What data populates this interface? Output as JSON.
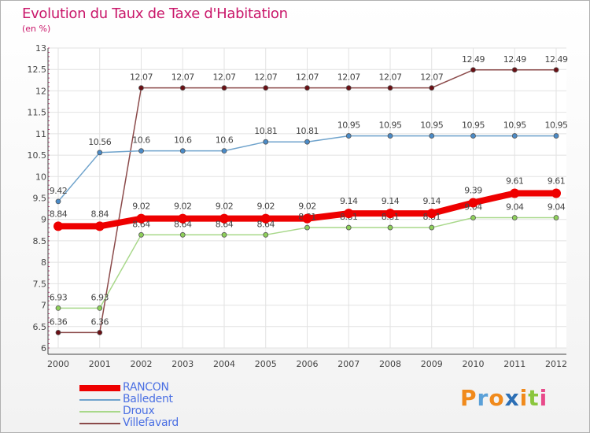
{
  "title": "Evolution du Taux de Taxe d'Habitation",
  "subtitle": "(en %)",
  "brand": {
    "text": "Proxiti",
    "letters": [
      "P",
      "r",
      "o",
      "x",
      "i",
      "t",
      "i"
    ],
    "colors": [
      "#f08a1c",
      "#5aa0d8",
      "#f08a1c",
      "#2c6fb5",
      "#f08a1c",
      "#8bc63e",
      "#e84a8a"
    ]
  },
  "chart_data": {
    "type": "line",
    "title": "Evolution du Taux de Taxe d'Habitation",
    "ylabel": "(en %)",
    "xlabel": "",
    "categories": [
      "2000",
      "2001",
      "2002",
      "2003",
      "2004",
      "2005",
      "2006",
      "2007",
      "2008",
      "2009",
      "2010",
      "2011",
      "2012"
    ],
    "ylim": [
      6,
      13
    ],
    "yticks": [
      "6",
      "6.5",
      "7",
      "7.5",
      "8",
      "8.5",
      "9",
      "9.5",
      "10",
      "10.5",
      "11",
      "11.5",
      "12",
      "12.5",
      "13"
    ],
    "grid": true,
    "series": [
      {
        "name": "Villefavard",
        "color": "#8b4a4a",
        "dot": "#6b0f14",
        "width": 1.5,
        "values": [
          6.36,
          6.36,
          12.07,
          12.07,
          12.07,
          12.07,
          12.07,
          12.07,
          12.07,
          12.07,
          12.49,
          12.49,
          12.49
        ],
        "labels": [
          "6.36",
          "6.36",
          "12.07",
          "12.07",
          "12.07",
          "12.07",
          "12.07",
          "12.07",
          "12.07",
          "12.07",
          "12.49",
          "12.49",
          "12.49"
        ]
      },
      {
        "name": "Balledent",
        "color": "#6fa3cc",
        "dot": "#4a8bc8",
        "width": 1.5,
        "values": [
          9.42,
          10.56,
          10.6,
          10.6,
          10.6,
          10.81,
          10.81,
          10.95,
          10.95,
          10.95,
          10.95,
          10.95,
          10.95
        ],
        "labels": [
          "9.42",
          "10.56",
          "10.6",
          "10.6",
          "10.6",
          "10.81",
          "10.81",
          "10.95",
          "10.95",
          "10.95",
          "10.95",
          "10.95",
          "10.95"
        ]
      },
      {
        "name": "Droux",
        "color": "#a8d88a",
        "dot": "#8ed05a",
        "width": 1.5,
        "values": [
          6.93,
          6.93,
          8.64,
          8.64,
          8.64,
          8.64,
          8.81,
          8.81,
          8.81,
          8.81,
          9.04,
          9.04,
          9.04
        ],
        "labels": [
          "6.93",
          "6.93",
          "8.64",
          "8.64",
          "8.64",
          "8.64",
          "8.81",
          "8.81",
          "8.81",
          "8.81",
          "9.04",
          "9.04",
          "9.04"
        ]
      },
      {
        "name": "RANCON",
        "color": "#ee0000",
        "dot": "#ee0000",
        "width": 8,
        "values": [
          8.84,
          8.84,
          9.02,
          9.02,
          9.02,
          9.02,
          9.02,
          9.14,
          9.14,
          9.14,
          9.39,
          9.61,
          9.61
        ],
        "labels": [
          "8.84",
          "8.84",
          "9.02",
          "9.02",
          "9.02",
          "9.02",
          "9.02",
          "9.14",
          "9.14",
          "9.14",
          "9.39",
          "9.61",
          "9.61"
        ]
      }
    ],
    "legend_order": [
      "RANCON",
      "Balledent",
      "Droux",
      "Villefavard"
    ],
    "legend_position": "bottom-left"
  }
}
